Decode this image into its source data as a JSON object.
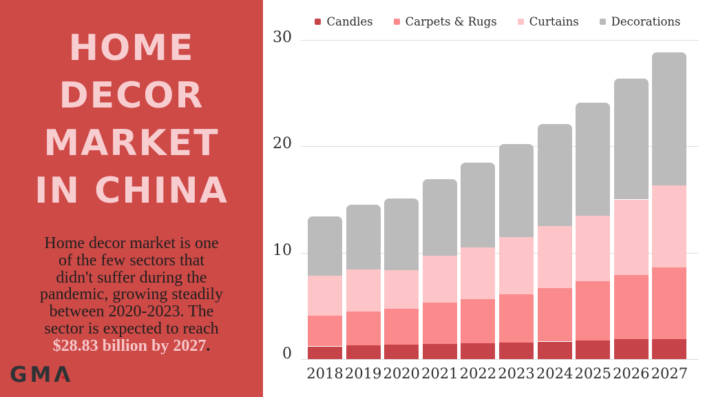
{
  "sidebar": {
    "background_color": "#cd4a47",
    "title_lines": [
      "HOME",
      "DECOR",
      "MARKET",
      "IN CHINA"
    ],
    "title_color": "#f8cdd0",
    "paragraph_lines": [
      "Home decor market is one",
      "of the few sectors that",
      "didn't suffer during the",
      "pandemic, growing steadily",
      "between 2020-2023. The",
      "sector is expected to reach"
    ],
    "highlight_text": "$28.83 billion by 2027",
    "highlight_period": ".",
    "highlight_color": "#f6c6c9",
    "logo": {
      "gm": "GM",
      "a": "Λ",
      "dot_color": "#c9252b"
    }
  },
  "chart_data": {
    "type": "bar",
    "stacked": true,
    "title": "",
    "xlabel": "",
    "ylabel": "",
    "unit_hint": "USD billion",
    "categories": [
      "2018",
      "2019",
      "2020",
      "2021",
      "2022",
      "2023",
      "2024",
      "2025",
      "2026",
      "2027"
    ],
    "series": [
      {
        "name": "Candles",
        "color": "#c7434a",
        "values": [
          1.2,
          1.3,
          1.35,
          1.45,
          1.5,
          1.55,
          1.65,
          1.75,
          1.85,
          1.9
        ]
      },
      {
        "name": "Carpets & Rugs",
        "color": "#fb8a8d",
        "values": [
          2.9,
          3.15,
          3.4,
          3.85,
          4.15,
          4.55,
          5.05,
          5.55,
          6.05,
          6.7
        ]
      },
      {
        "name": "Curtains",
        "color": "#fec5c8",
        "values": [
          3.75,
          4.0,
          3.6,
          4.4,
          4.85,
          5.35,
          5.8,
          6.2,
          7.1,
          7.7
        ]
      },
      {
        "name": "Decorations",
        "color": "#bcbbbb",
        "values": [
          5.55,
          6.05,
          6.75,
          7.2,
          8.0,
          8.75,
          9.6,
          10.6,
          11.4,
          12.53
        ]
      }
    ],
    "totals": [
      13.4,
      14.5,
      15.1,
      16.9,
      18.5,
      20.2,
      22.1,
      24.1,
      26.4,
      28.83
    ],
    "ylim": [
      0,
      30
    ],
    "yticks": [
      0,
      10,
      20,
      30
    ],
    "grid": true,
    "legend_position": "top"
  }
}
